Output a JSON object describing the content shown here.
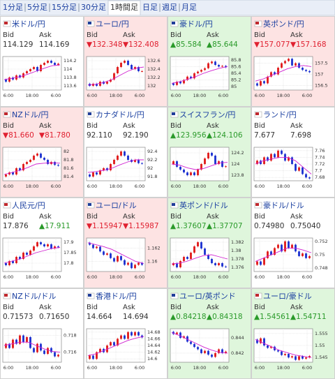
{
  "tabs": [
    "1分足",
    "5分足",
    "15分足",
    "30分足",
    "1時間足",
    "日足",
    "週足",
    "月足"
  ],
  "selected_tab": 4,
  "labels": {
    "bid": "Bid",
    "ask": "Ask"
  },
  "xlabels": [
    "6:00",
    "18:00",
    "6:00"
  ],
  "tiles": [
    {
      "name": "米ドル/円",
      "bg": "white",
      "bid": "114.129",
      "ask": "114.169",
      "chart": {
        "ylim": [
          113.5,
          114.3
        ],
        "yticks": [
          114.2,
          114,
          113.8,
          113.6
        ],
        "open": 113.75,
        "closes": [
          113.7,
          113.8,
          113.75,
          113.85,
          113.8,
          113.9,
          113.95,
          114.0,
          114.05,
          113.95,
          114.1,
          114.15,
          114.2,
          114.15,
          114.1,
          114.13
        ],
        "ma": [
          113.75,
          113.78,
          113.82,
          113.88,
          113.95,
          114.02,
          114.08,
          114.1
        ]
      }
    },
    {
      "name": "ユーロ/円",
      "bg": "down",
      "bid": "▼132.348",
      "ask": "▼132.408",
      "chart": {
        "ylim": [
          131.9,
          132.7
        ],
        "yticks": [
          132.6,
          132.4,
          132.2,
          132
        ],
        "open": 132.05,
        "closes": [
          132.0,
          132.05,
          132.0,
          132.1,
          132.05,
          132.1,
          132.15,
          132.3,
          132.45,
          132.55,
          132.6,
          132.5,
          132.4,
          132.45,
          132.35,
          132.35
        ],
        "ma": [
          132.02,
          132.04,
          132.08,
          132.15,
          132.25,
          132.35,
          132.42,
          132.45
        ]
      }
    },
    {
      "name": "豪ドル/円",
      "bg": "up",
      "bid": "▲85.584",
      "ask": "▲85.644",
      "chart": {
        "ylim": [
          84.9,
          85.9
        ],
        "yticks": [
          85.8,
          85.6,
          85.4,
          85.2,
          85
        ],
        "open": 85.1,
        "closes": [
          85.05,
          85.15,
          85.1,
          85.2,
          85.3,
          85.25,
          85.4,
          85.45,
          85.5,
          85.55,
          85.7,
          85.75,
          85.65,
          85.6,
          85.62,
          85.58
        ],
        "ma": [
          85.1,
          85.15,
          85.22,
          85.3,
          85.4,
          85.48,
          85.55,
          85.6
        ]
      }
    },
    {
      "name": "英ポンド/円",
      "bg": "down",
      "bid": "▼157.077",
      "ask": "▼157.168",
      "chart": {
        "ylim": [
          156.3,
          157.8
        ],
        "yticks": [
          157.5,
          157,
          156.5
        ],
        "open": 156.6,
        "closes": [
          156.5,
          156.7,
          156.6,
          156.9,
          157.1,
          157.0,
          157.3,
          157.5,
          157.6,
          157.7,
          157.4,
          157.5,
          157.3,
          157.2,
          157.15,
          157.1
        ],
        "ma": [
          156.7,
          156.8,
          156.95,
          157.1,
          157.25,
          157.35,
          157.4,
          157.35
        ]
      }
    },
    {
      "name": "NZドル/円",
      "bg": "down",
      "bid": "▼81.660",
      "ask": "▼81.780",
      "chart": {
        "ylim": [
          81.3,
          82.1
        ],
        "yticks": [
          82,
          81.8,
          81.6,
          81.4
        ],
        "open": 81.4,
        "closes": [
          81.45,
          81.5,
          81.45,
          81.6,
          81.55,
          81.7,
          81.75,
          81.8,
          81.9,
          81.95,
          81.85,
          81.8,
          81.7,
          81.75,
          81.68,
          81.66
        ],
        "ma": [
          81.45,
          81.5,
          81.55,
          81.62,
          81.7,
          81.72,
          81.73,
          81.72
        ]
      }
    },
    {
      "name": "カナダドル/円",
      "bg": "white",
      "bid": "92.110",
      "ask": "92.190",
      "chart": {
        "ylim": [
          91.7,
          92.5
        ],
        "yticks": [
          92.4,
          92.2,
          92,
          91.8
        ],
        "open": 91.85,
        "closes": [
          91.8,
          91.9,
          91.85,
          91.95,
          92.0,
          91.95,
          92.1,
          92.2,
          92.3,
          92.4,
          92.3,
          92.2,
          92.15,
          92.2,
          92.12,
          92.11
        ],
        "ma": [
          91.9,
          91.92,
          91.95,
          92.0,
          92.08,
          92.15,
          92.2,
          92.2
        ]
      }
    },
    {
      "name": "スイスフラン/円",
      "bg": "up",
      "bid": "▲123.956",
      "ask": "▲124.106",
      "chart": {
        "ylim": [
          123.7,
          124.3
        ],
        "yticks": [
          124.2,
          124,
          123.8
        ],
        "open": 124.0,
        "closes": [
          124.05,
          123.95,
          123.9,
          123.85,
          123.8,
          123.85,
          123.8,
          123.9,
          124.0,
          124.1,
          124.2,
          124.15,
          124.0,
          124.05,
          123.95,
          123.96
        ],
        "ma": [
          124.0,
          123.98,
          123.93,
          123.9,
          123.92,
          123.97,
          124.02,
          124.03
        ]
      }
    },
    {
      "name": "ランド/円",
      "bg": "white",
      "bid": "7.677",
      "ask": "7.698",
      "chart": {
        "ylim": [
          7.67,
          7.77
        ],
        "yticks": [
          7.76,
          7.74,
          7.72,
          7.7,
          7.68
        ],
        "open": 7.72,
        "closes": [
          7.73,
          7.72,
          7.74,
          7.73,
          7.75,
          7.74,
          7.76,
          7.75,
          7.73,
          7.74,
          7.72,
          7.7,
          7.71,
          7.69,
          7.68,
          7.677
        ],
        "ma": [
          7.72,
          7.73,
          7.735,
          7.74,
          7.74,
          7.73,
          7.71,
          7.69
        ]
      }
    },
    {
      "name": "人民元/円",
      "bg": "white",
      "bid": "17.876",
      "ask": "▲17.911",
      "chart": {
        "ylim": [
          17.76,
          17.92
        ],
        "yticks": [
          17.9,
          17.85,
          17.8
        ],
        "open": 17.8,
        "closes": [
          17.79,
          17.81,
          17.8,
          17.83,
          17.82,
          17.85,
          17.84,
          17.86,
          17.88,
          17.9,
          17.89,
          17.88,
          17.89,
          17.87,
          17.88,
          17.876
        ],
        "ma": [
          17.8,
          17.81,
          17.82,
          17.835,
          17.85,
          17.86,
          17.87,
          17.875
        ]
      }
    },
    {
      "name": "ユーロ/ドル",
      "bg": "down",
      "bid": "▼1.15947",
      "ask": "▼1.15987",
      "chart": {
        "ylim": [
          1.1585,
          1.1635
        ],
        "yticks": [
          1.162,
          1.16
        ],
        "open": 1.1628,
        "closes": [
          1.1625,
          1.162,
          1.1622,
          1.1615,
          1.161,
          1.1612,
          1.1605,
          1.16,
          1.1608,
          1.1602,
          1.1595,
          1.1598,
          1.159,
          1.1595,
          1.1598,
          1.1595
        ],
        "ma": [
          1.1628,
          1.1625,
          1.1622,
          1.1618,
          1.1612,
          1.1606,
          1.16,
          1.1597
        ]
      }
    },
    {
      "name": "英ポンド/ドル",
      "bg": "up",
      "bid": "▲1.37607",
      "ask": "▲1.37707",
      "chart": {
        "ylim": [
          1.375,
          1.383
        ],
        "yticks": [
          1.382,
          1.38,
          1.378,
          1.376
        ],
        "open": 1.3765,
        "closes": [
          1.377,
          1.376,
          1.3775,
          1.3785,
          1.378,
          1.3795,
          1.381,
          1.382,
          1.3805,
          1.379,
          1.378,
          1.377,
          1.3765,
          1.377,
          1.3762,
          1.3761
        ],
        "ma": [
          1.3768,
          1.377,
          1.3775,
          1.3782,
          1.3788,
          1.379,
          1.3785,
          1.378
        ]
      }
    },
    {
      "name": "豪ドル/ドル",
      "bg": "white",
      "bid": "0.74980",
      "ask": "0.75040",
      "chart": {
        "ylim": [
          0.7475,
          0.7525
        ],
        "yticks": [
          0.752,
          0.75,
          0.748
        ],
        "open": 0.7485,
        "closes": [
          0.749,
          0.7485,
          0.7495,
          0.7505,
          0.75,
          0.751,
          0.7515,
          0.7505,
          0.752,
          0.751,
          0.7515,
          0.7505,
          0.7498,
          0.7502,
          0.7495,
          0.7498
        ],
        "ma": [
          0.749,
          0.7495,
          0.75,
          0.7505,
          0.751,
          0.751,
          0.7507,
          0.7503
        ]
      }
    },
    {
      "name": "NZドル/ドル",
      "bg": "white",
      "bid": "0.71573",
      "ask": "0.71650",
      "chart": {
        "ylim": [
          0.7148,
          0.7188
        ],
        "yticks": [
          0.718,
          0.716
        ],
        "open": 0.7165,
        "closes": [
          0.717,
          0.7165,
          0.7175,
          0.717,
          0.718,
          0.7172,
          0.7178,
          0.7165,
          0.716,
          0.717,
          0.7162,
          0.7158,
          0.7165,
          0.716,
          0.7155,
          0.7157
        ],
        "ma": [
          0.7168,
          0.717,
          0.7172,
          0.7172,
          0.7168,
          0.7164,
          0.7161,
          0.716
        ]
      }
    },
    {
      "name": "香港ドル/円",
      "bg": "white",
      "bid": "14.664",
      "ask": "14.694",
      "chart": {
        "ylim": [
          14.59,
          14.69
        ],
        "yticks": [
          14.68,
          14.66,
          14.64,
          14.62,
          14.6
        ],
        "open": 14.6,
        "closes": [
          14.61,
          14.6,
          14.62,
          14.63,
          14.62,
          14.64,
          14.65,
          14.64,
          14.66,
          14.67,
          14.66,
          14.68,
          14.67,
          14.68,
          14.67,
          14.664
        ],
        "ma": [
          14.61,
          14.615,
          14.625,
          14.635,
          14.645,
          14.655,
          14.662,
          14.667
        ]
      }
    },
    {
      "name": "ユーロ/英ポンド",
      "bg": "up",
      "bid": "▲0.84218",
      "ask": "▲0.84318",
      "chart": {
        "ylim": [
          0.8408,
          0.8452
        ],
        "yticks": [
          0.844,
          0.842
        ],
        "open": 0.8448,
        "closes": [
          0.8445,
          0.8447,
          0.844,
          0.8442,
          0.8435,
          0.8432,
          0.8428,
          0.8425,
          0.842,
          0.8423,
          0.8418,
          0.8415,
          0.842,
          0.8425,
          0.842,
          0.8422
        ],
        "ma": [
          0.8447,
          0.8443,
          0.8438,
          0.8433,
          0.8428,
          0.8424,
          0.8421,
          0.842
        ]
      }
    },
    {
      "name": "ユーロ/豪ドル",
      "bg": "up",
      "bid": "▲1.54561",
      "ask": "▲1.54711",
      "chart": {
        "ylim": [
          1.543,
          1.557
        ],
        "yticks": [
          1.555,
          1.55,
          1.545
        ],
        "open": 1.5525,
        "closes": [
          1.551,
          1.553,
          1.55,
          1.549,
          1.5495,
          1.548,
          1.5475,
          1.546,
          1.5465,
          1.545,
          1.5455,
          1.544,
          1.5455,
          1.5445,
          1.545,
          1.5456
        ],
        "ma": [
          1.5525,
          1.551,
          1.5495,
          1.548,
          1.547,
          1.546,
          1.5455,
          1.545
        ]
      }
    }
  ]
}
